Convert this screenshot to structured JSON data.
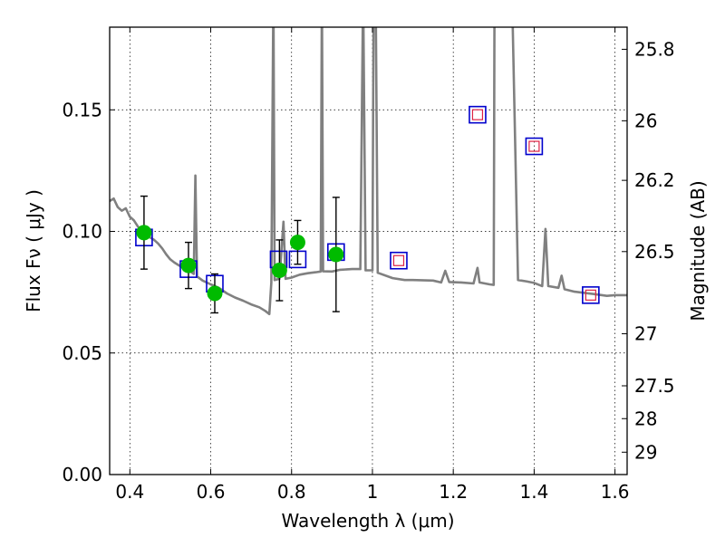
{
  "chart_data": {
    "type": "scatter",
    "xlabel": "Wavelength  λ (μm)",
    "ylabel": "Flux  Fν  ( μJy )",
    "y2label": "Magnitude (AB)",
    "xlim": [
      0.35,
      1.63
    ],
    "ylim": [
      0.0,
      0.184
    ],
    "grid": true,
    "xticks": [
      {
        "value": 0.4,
        "label": "0.4"
      },
      {
        "value": 0.6,
        "label": "0.6"
      },
      {
        "value": 0.8,
        "label": "0.8"
      },
      {
        "value": 1.0,
        "label": "1"
      },
      {
        "value": 1.2,
        "label": "1.2"
      },
      {
        "value": 1.4,
        "label": "1.4"
      },
      {
        "value": 1.6,
        "label": "1.6"
      }
    ],
    "yticks": [
      {
        "value": 0.0,
        "label": "0.00"
      },
      {
        "value": 0.05,
        "label": "0.05"
      },
      {
        "value": 0.1,
        "label": "0.10"
      },
      {
        "value": 0.15,
        "label": "0.15"
      }
    ],
    "magnitude_ticks": [
      {
        "value": 0.1749,
        "label": "25.8"
      },
      {
        "value": 0.1455,
        "label": "26"
      },
      {
        "value": 0.121,
        "label": "26.2"
      },
      {
        "value": 0.0917,
        "label": "26.5"
      },
      {
        "value": 0.0579,
        "label": "27"
      },
      {
        "value": 0.0365,
        "label": "27.5"
      },
      {
        "value": 0.023,
        "label": "28"
      },
      {
        "value": 0.0092,
        "label": "29"
      }
    ],
    "colors": {
      "model": "#808080",
      "observed": "#00bb00",
      "model_photometry": "#0000cc",
      "ir_marker": "#dd2244",
      "errorbar": "#000000"
    },
    "series": [
      {
        "type": "line",
        "points": [
          [
            0.35,
            0.1125
          ],
          [
            0.36,
            0.1135
          ],
          [
            0.37,
            0.11
          ],
          [
            0.38,
            0.1085
          ],
          [
            0.39,
            0.1095
          ],
          [
            0.4,
            0.106
          ],
          [
            0.41,
            0.1045
          ],
          [
            0.42,
            0.102
          ],
          [
            0.43,
            0.1
          ],
          [
            0.44,
            0.099
          ],
          [
            0.45,
            0.0975
          ],
          [
            0.46,
            0.0965
          ],
          [
            0.47,
            0.095
          ],
          [
            0.48,
            0.093
          ],
          [
            0.49,
            0.0905
          ],
          [
            0.5,
            0.0885
          ],
          [
            0.51,
            0.0872
          ],
          [
            0.52,
            0.0862
          ],
          [
            0.53,
            0.0852
          ],
          [
            0.54,
            0.0845
          ],
          [
            0.55,
            0.0835
          ],
          [
            0.558,
            0.0825
          ],
          [
            0.562,
            0.123
          ],
          [
            0.566,
            0.0815
          ],
          [
            0.58,
            0.0798
          ],
          [
            0.6,
            0.0782
          ],
          [
            0.62,
            0.0768
          ],
          [
            0.64,
            0.0745
          ],
          [
            0.66,
            0.0728
          ],
          [
            0.68,
            0.0715
          ],
          [
            0.7,
            0.07
          ],
          [
            0.72,
            0.0688
          ],
          [
            0.735,
            0.0673
          ],
          [
            0.745,
            0.066
          ],
          [
            0.75,
            0.079
          ],
          [
            0.755,
            0.2
          ],
          [
            0.758,
            0.08
          ],
          [
            0.77,
            0.0805
          ],
          [
            0.78,
            0.104
          ],
          [
            0.785,
            0.0805
          ],
          [
            0.8,
            0.081
          ],
          [
            0.82,
            0.0822
          ],
          [
            0.84,
            0.0828
          ],
          [
            0.86,
            0.0832
          ],
          [
            0.872,
            0.0835
          ],
          [
            0.875,
            0.2
          ],
          [
            0.878,
            0.0836
          ],
          [
            0.9,
            0.0835
          ],
          [
            0.92,
            0.0842
          ],
          [
            0.95,
            0.0845
          ],
          [
            0.97,
            0.0845
          ],
          [
            0.977,
            0.2
          ],
          [
            0.983,
            0.084
          ],
          [
            1.0,
            0.084
          ],
          [
            1.003,
            0.2
          ],
          [
            1.008,
            0.2
          ],
          [
            1.013,
            0.083
          ],
          [
            1.05,
            0.0808
          ],
          [
            1.08,
            0.08
          ],
          [
            1.1,
            0.08
          ],
          [
            1.15,
            0.0798
          ],
          [
            1.17,
            0.079
          ],
          [
            1.18,
            0.0838
          ],
          [
            1.19,
            0.0792
          ],
          [
            1.22,
            0.079
          ],
          [
            1.25,
            0.0786
          ],
          [
            1.26,
            0.085
          ],
          [
            1.265,
            0.079
          ],
          [
            1.29,
            0.0782
          ],
          [
            1.3,
            0.078
          ],
          [
            1.302,
            0.2
          ],
          [
            1.335,
            0.2
          ],
          [
            1.345,
            0.2
          ],
          [
            1.36,
            0.08
          ],
          [
            1.38,
            0.0795
          ],
          [
            1.4,
            0.0788
          ],
          [
            1.42,
            0.0775
          ],
          [
            1.428,
            0.101
          ],
          [
            1.435,
            0.0775
          ],
          [
            1.46,
            0.0768
          ],
          [
            1.468,
            0.0818
          ],
          [
            1.475,
            0.0762
          ],
          [
            1.5,
            0.0752
          ],
          [
            1.55,
            0.0742
          ],
          [
            1.58,
            0.0735
          ],
          [
            1.6,
            0.0738
          ],
          [
            1.63,
            0.0738
          ]
        ]
      },
      {
        "type": "box",
        "points": [
          [
            0.435,
            0.0975
          ],
          [
            0.545,
            0.0845
          ],
          [
            0.61,
            0.0785
          ],
          [
            0.768,
            0.0885
          ],
          [
            0.815,
            0.0885
          ],
          [
            0.91,
            0.0915
          ],
          [
            1.065,
            0.088
          ],
          [
            1.26,
            0.148
          ],
          [
            1.4,
            0.135
          ],
          [
            1.54,
            0.0738
          ]
        ]
      },
      {
        "type": "inner-box",
        "points": [
          [
            1.065,
            0.088
          ],
          [
            1.26,
            0.148
          ],
          [
            1.4,
            0.135
          ],
          [
            1.54,
            0.0738
          ]
        ]
      },
      {
        "type": "dot-errorbar",
        "points": [
          {
            "x": 0.435,
            "y": 0.0995,
            "ylo": 0.0845,
            "yhi": 0.1145
          },
          {
            "x": 0.545,
            "y": 0.086,
            "ylo": 0.0765,
            "yhi": 0.0955
          },
          {
            "x": 0.61,
            "y": 0.0745,
            "ylo": 0.0665,
            "yhi": 0.0825
          },
          {
            "x": 0.77,
            "y": 0.084,
            "ylo": 0.0715,
            "yhi": 0.0965
          },
          {
            "x": 0.815,
            "y": 0.0955,
            "ylo": 0.0865,
            "yhi": 0.1045
          },
          {
            "x": 0.91,
            "y": 0.0905,
            "ylo": 0.067,
            "yhi": 0.114
          }
        ]
      }
    ]
  }
}
